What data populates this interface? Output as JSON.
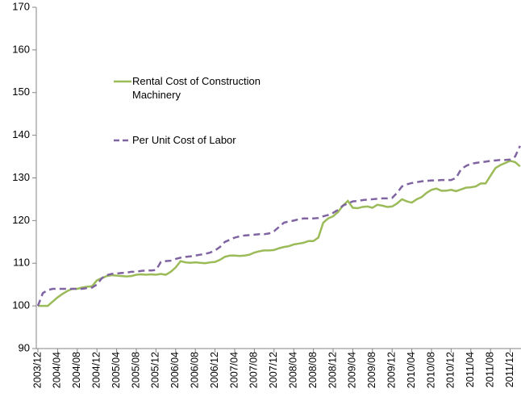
{
  "chart_data": {
    "type": "line",
    "categories": [
      "2003/12",
      null,
      null,
      null,
      "2004/04",
      null,
      null,
      null,
      "2004/08",
      null,
      null,
      null,
      "2004/12",
      null,
      null,
      null,
      "2005/04",
      null,
      null,
      null,
      "2005/08",
      null,
      null,
      null,
      "2005/12",
      null,
      null,
      null,
      "2006/04",
      null,
      null,
      null,
      "2006/08",
      null,
      null,
      null,
      "2006/12",
      null,
      null,
      null,
      "2007/04",
      null,
      null,
      null,
      "2007/08",
      null,
      null,
      null,
      "2007/12",
      null,
      null,
      null,
      "2008/04",
      null,
      null,
      null,
      "2008/08",
      null,
      null,
      null,
      "2008/12",
      null,
      null,
      null,
      "2009/04",
      null,
      null,
      null,
      "2009/08",
      null,
      null,
      null,
      "2009/12",
      null,
      null,
      null,
      "2010/04",
      null,
      null,
      null,
      "2010/08",
      null,
      null,
      null,
      "2010/12",
      null,
      null,
      null,
      "2011/04",
      null,
      null,
      null,
      "2011/08",
      null,
      null,
      null,
      "2011/12",
      null,
      null
    ],
    "series": [
      {
        "name": "Rental Cost of Construction Machinery",
        "color": "#9bbb59",
        "line_style": "solid",
        "values": [
          100,
          100,
          100,
          101,
          102,
          102.8,
          103.5,
          104,
          104,
          104.3,
          104.5,
          104.6,
          106,
          106.5,
          107,
          107.2,
          107.1,
          107,
          106.9,
          107,
          107.3,
          107.4,
          107.3,
          107.4,
          107.3,
          107.5,
          107.3,
          108,
          109,
          110.5,
          110.2,
          110.1,
          110.2,
          110.1,
          110,
          110.2,
          110.3,
          110.8,
          111.5,
          111.8,
          111.8,
          111.7,
          111.8,
          112,
          112.5,
          112.8,
          113,
          113,
          113.1,
          113.5,
          113.8,
          114,
          114.4,
          114.6,
          114.8,
          115.2,
          115.2,
          116,
          119.5,
          120.5,
          121,
          122,
          123.5,
          124.6,
          123,
          122.9,
          123.2,
          123.3,
          123,
          123.7,
          123.5,
          123.2,
          123.3,
          124,
          125,
          124.5,
          124.2,
          125,
          125.5,
          126.5,
          127.2,
          127.5,
          127,
          127,
          127.2,
          126.9,
          127.3,
          127.7,
          127.8,
          128,
          128.7,
          128.7,
          130.5,
          132.3,
          133,
          133.5,
          134,
          133.7,
          132.7
        ]
      },
      {
        "name": "Per Unit Cost of Labor",
        "color": "#8064a2",
        "line_style": "dashed",
        "values": [
          100,
          103,
          103.7,
          104,
          104,
          104,
          104,
          104,
          104,
          104,
          104.2,
          104.3,
          105,
          106.5,
          107.2,
          107.5,
          107.6,
          107.7,
          107.8,
          108,
          108,
          108.2,
          108.3,
          108.3,
          108.4,
          110.3,
          110.5,
          110.6,
          111,
          111.3,
          111.5,
          111.6,
          111.8,
          112,
          112.2,
          112.5,
          113,
          113.8,
          115,
          115.5,
          116,
          116.3,
          116.5,
          116.6,
          116.7,
          116.8,
          116.8,
          117,
          117.5,
          118.5,
          119.5,
          119.8,
          120,
          120.3,
          120.5,
          120.5,
          120.5,
          120.6,
          121,
          121.3,
          121.8,
          122.5,
          123.5,
          124,
          124.5,
          124.6,
          124.8,
          124.9,
          125,
          125.1,
          125.2,
          125.2,
          125.3,
          126.5,
          128,
          128.5,
          128.8,
          129,
          129.2,
          129.3,
          129.4,
          129.4,
          129.5,
          129.5,
          129.5,
          130,
          132,
          132.8,
          133.3,
          133.5,
          133.7,
          133.8,
          134,
          134.1,
          134.2,
          134.2,
          134.3,
          135,
          137.5
        ]
      }
    ],
    "ylim": [
      90,
      170
    ],
    "yticks": [
      90,
      100,
      110,
      120,
      130,
      140,
      150,
      160,
      170
    ],
    "grid": false
  }
}
